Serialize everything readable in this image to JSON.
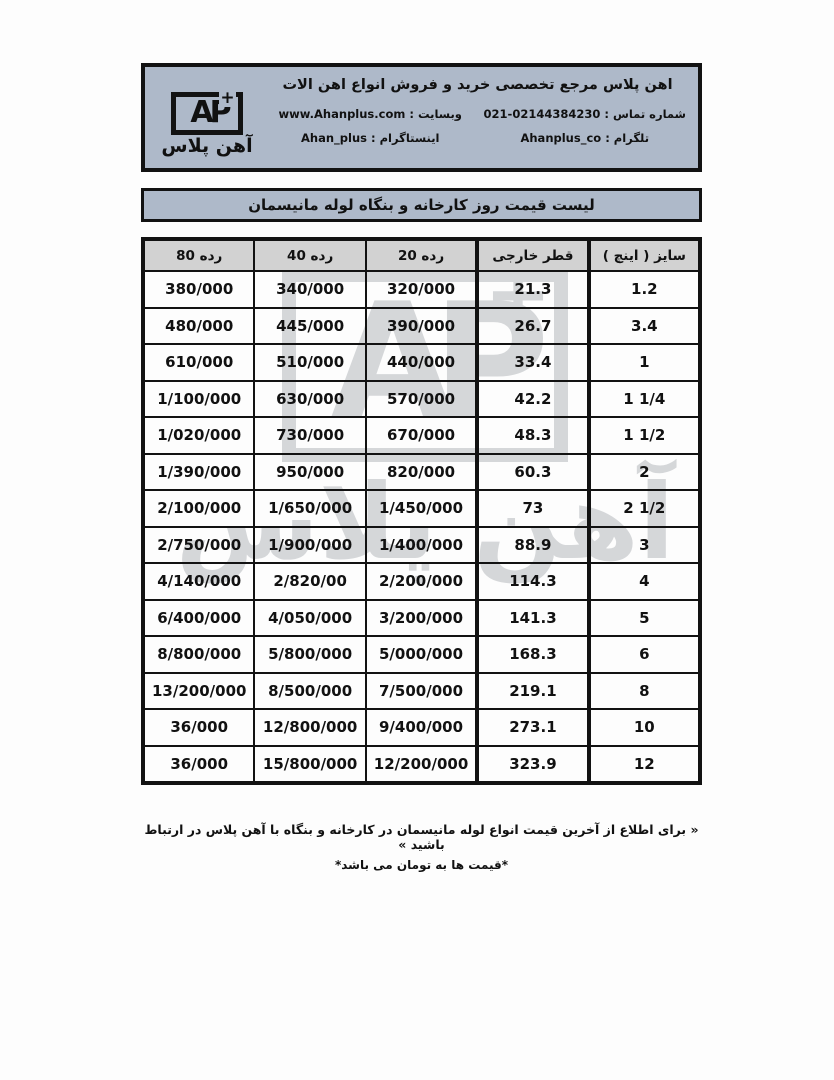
{
  "header": {
    "title": "اهن پلاس مرجع تخصصی خرید و فروش انواع اهن الات",
    "contacts": [
      {
        "label": "شماره تماس :",
        "value": "021-02144384230"
      },
      {
        "label": "وبسایت :",
        "value": "www.Ahanplus.com"
      },
      {
        "label": "تلگرام :",
        "value": "Ahanplus_co"
      },
      {
        "label": "اینستاگرام :",
        "value": "Ahan_plus"
      }
    ],
    "logo": {
      "mark": "AP",
      "plus": "+",
      "name": "آهن پلاس"
    }
  },
  "banner": {
    "title": "لیست قیمت روز کارخانه و بنگاه لوله مانیسمان"
  },
  "table": {
    "headers": [
      "سایز ( اینچ )",
      "قطر خارجی",
      "رده 20",
      "رده 40",
      "رده 80"
    ],
    "rows": [
      [
        "1.2",
        "21.3",
        "320/000",
        "340/000",
        "380/000"
      ],
      [
        "3.4",
        "26.7",
        "390/000",
        "445/000",
        "480/000"
      ],
      [
        "1",
        "33.4",
        "440/000",
        "510/000",
        "610/000"
      ],
      [
        "1 1/4",
        "42.2",
        "570/000",
        "630/000",
        "1/100/000"
      ],
      [
        "1 1/2",
        "48.3",
        "670/000",
        "730/000",
        "1/020/000"
      ],
      [
        "2",
        "60.3",
        "820/000",
        "950/000",
        "1/390/000"
      ],
      [
        "2 1/2",
        "73",
        "1/450/000",
        "1/650/000",
        "2/100/000"
      ],
      [
        "3",
        "88.9",
        "1/400/000",
        "1/900/000",
        "2/750/000"
      ],
      [
        "4",
        "114.3",
        "2/200/000",
        "2/820/00",
        "4/140/000"
      ],
      [
        "5",
        "141.3",
        "3/200/000",
        "4/050/000",
        "6/400/000"
      ],
      [
        "6",
        "168.3",
        "5/000/000",
        "5/800/000",
        "8/800/000"
      ],
      [
        "8",
        "219.1",
        "7/500/000",
        "8/500/000",
        "13/200/000"
      ],
      [
        "10",
        "273.1",
        "9/400/000",
        "12/800/000",
        "36/000"
      ],
      [
        "12",
        "323.9",
        "12/200/000",
        "15/800/000",
        "36/000"
      ]
    ]
  },
  "watermark": {
    "mark": "AP",
    "plus": "+",
    "name": "آهن پلاس"
  },
  "footer": {
    "note1": "« برای اطلاع از آخرین قیمت انواع لوله مانیسمان در کارخانه و بنگاه با آهن پلاس در ارتباط باشید »",
    "note2": "*قیمت ها به تومان می باشد*"
  },
  "colors": {
    "panel_blue": "#aeb9c9",
    "header_row_gray": "#d2d2d2",
    "border_black": "#121212",
    "watermark_gray": "#8d9299"
  }
}
